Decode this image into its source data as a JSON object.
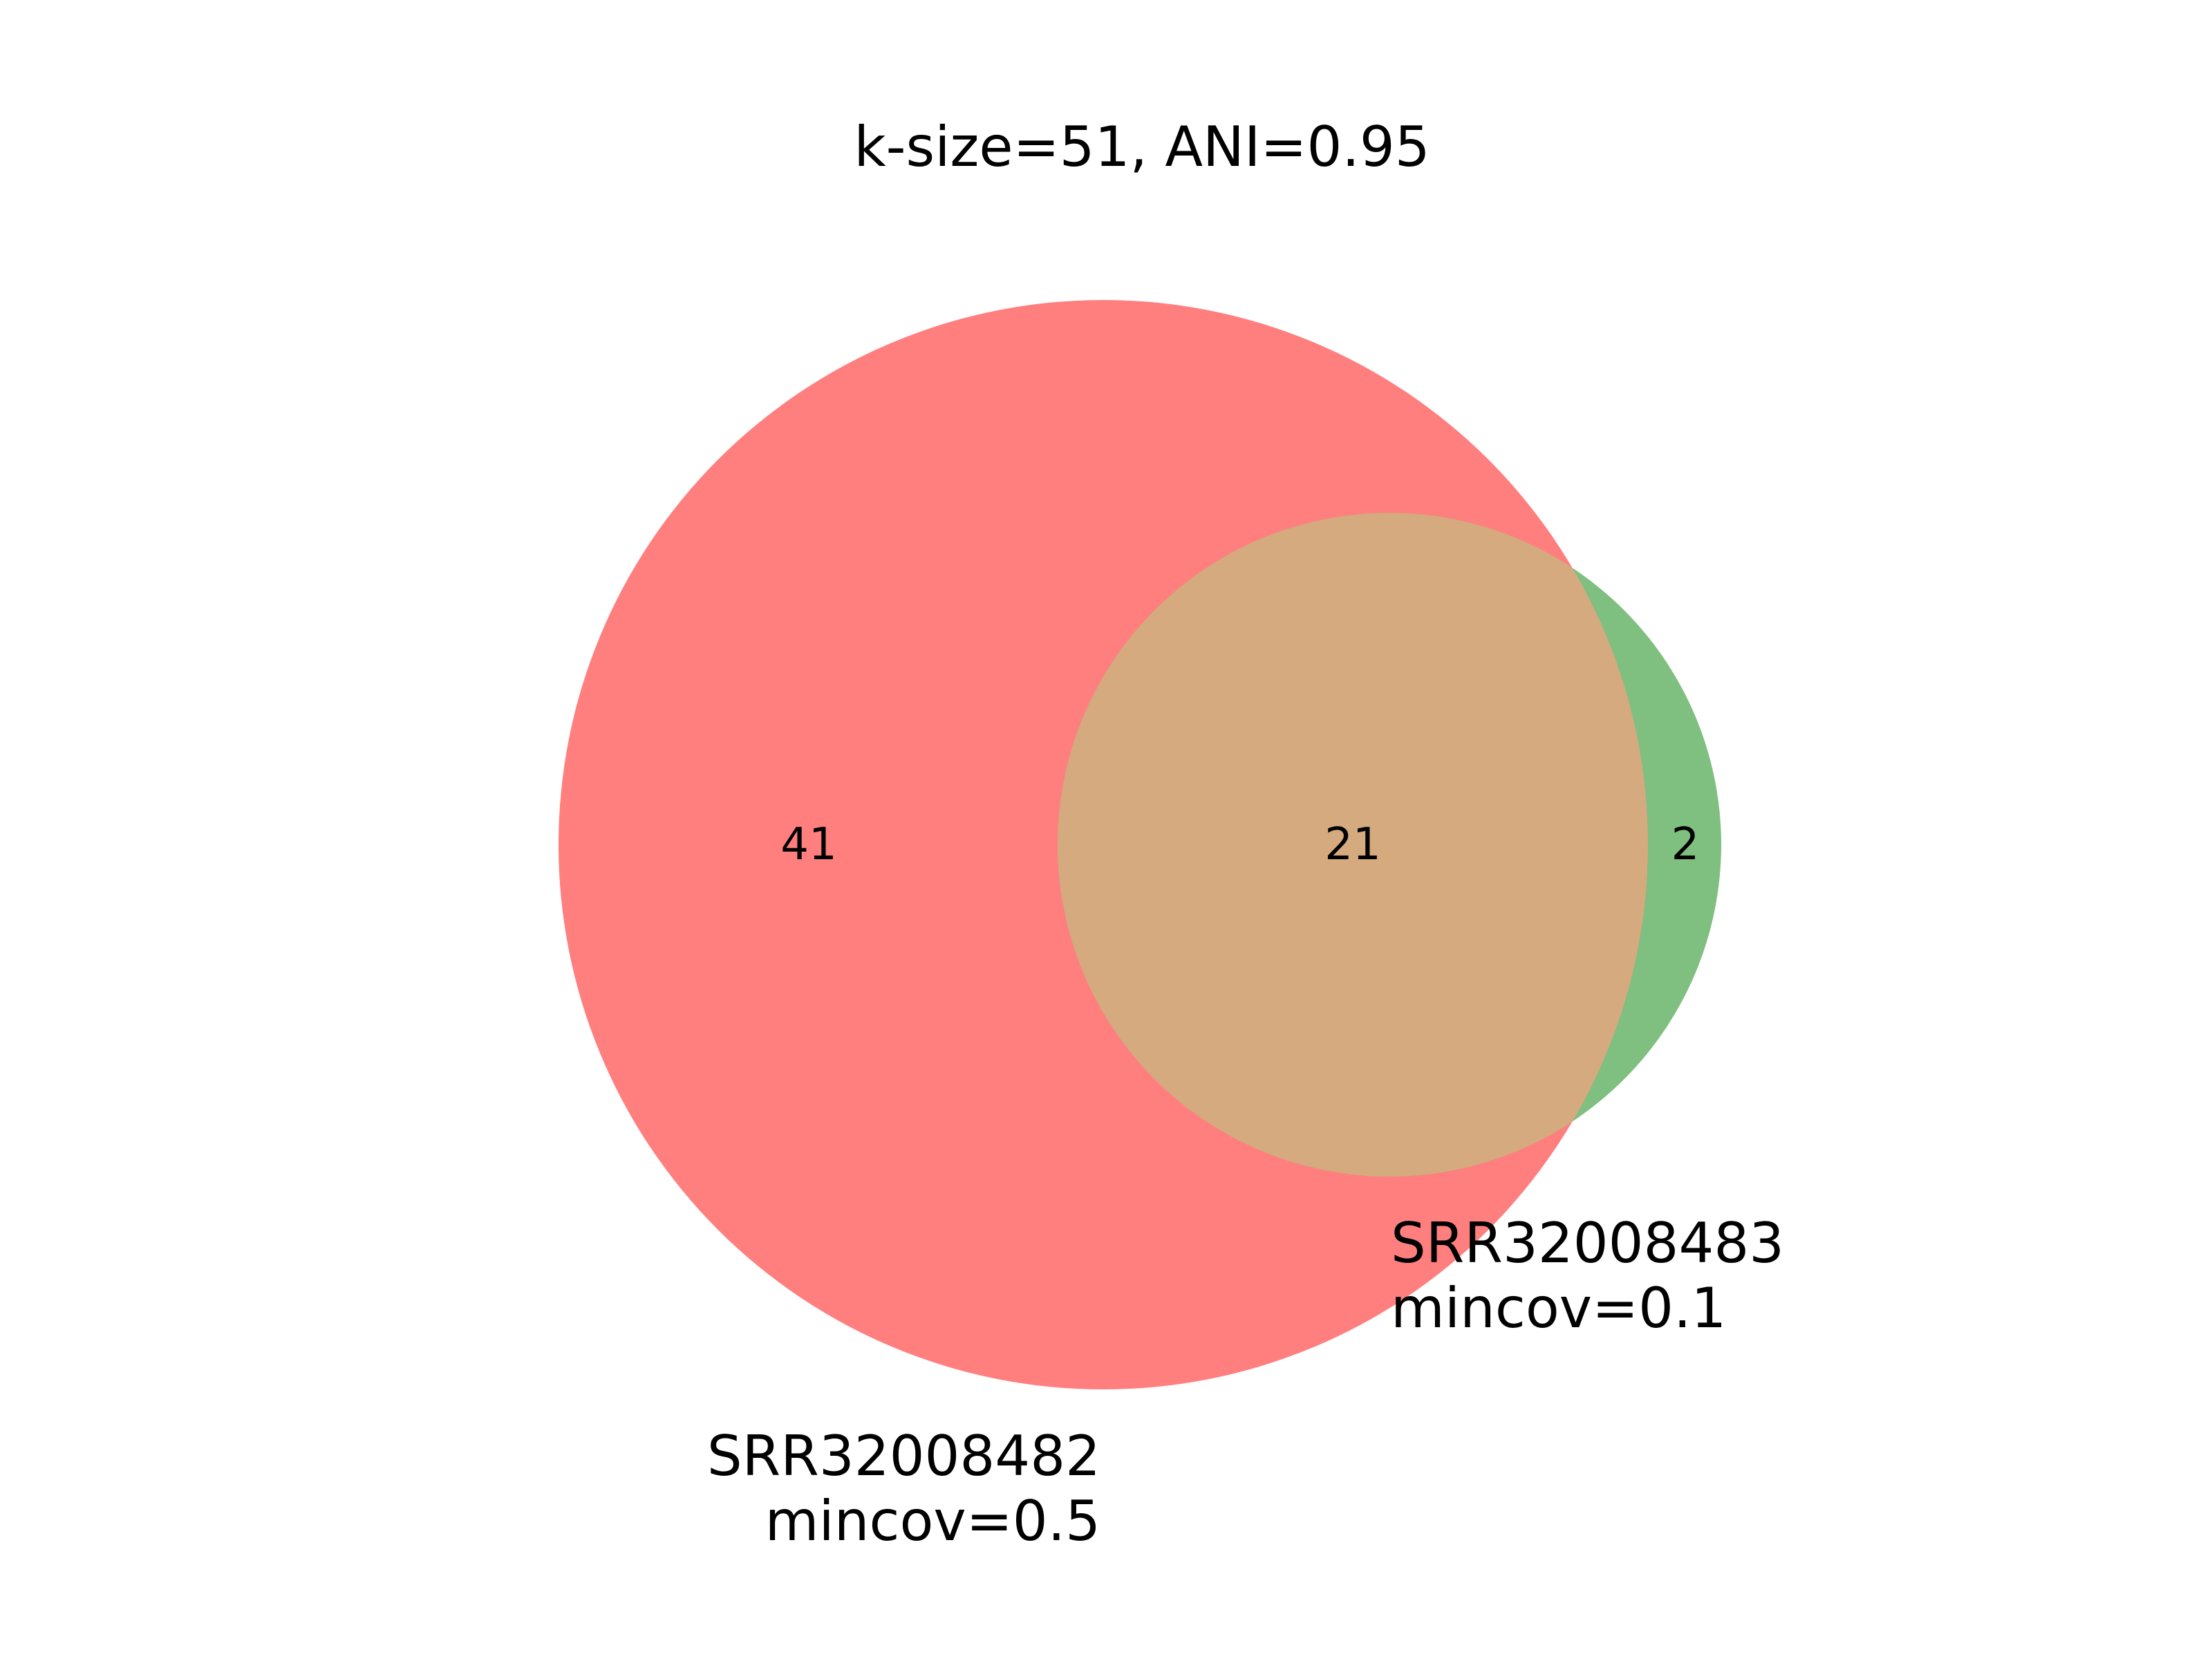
{
  "title": "k-size=51, ANI=0.95",
  "colors": {
    "set_a": "#ff7f7f",
    "set_b": "#7fbf7f",
    "intersection": "#d6aa7f",
    "background": "#ffffff"
  },
  "sets": [
    {
      "name": "SRR32008482",
      "subtitle": "mincov=0.5",
      "only_count": "41"
    },
    {
      "name": "SRR32008483",
      "subtitle": "mincov=0.1",
      "only_count": "2"
    }
  ],
  "intersection": {
    "count": "21"
  }
}
